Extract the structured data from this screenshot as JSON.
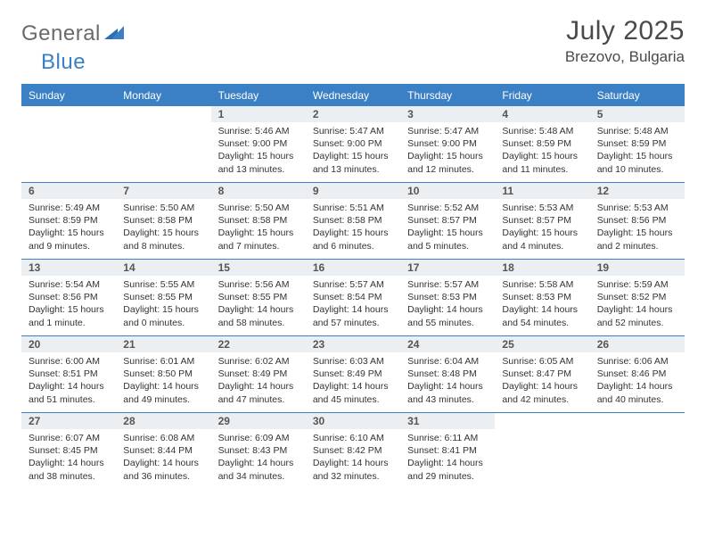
{
  "brand": {
    "word1": "General",
    "word2": "Blue",
    "word1_color": "#6a6a6a",
    "word2_color": "#3b7fc4"
  },
  "title": "July 2025",
  "location": "Brezovo, Bulgaria",
  "accent_color": "#3b7fc4",
  "daynum_bg": "#eceff1",
  "background_color": "#ffffff",
  "fonts": {
    "title_size": 30,
    "location_size": 17,
    "header_size": 12,
    "body_size": 10.5
  },
  "dayNames": [
    "Sunday",
    "Monday",
    "Tuesday",
    "Wednesday",
    "Thursday",
    "Friday",
    "Saturday"
  ],
  "firstDayOffset": 2,
  "days": [
    {
      "n": 1,
      "sunrise": "5:46 AM",
      "sunset": "9:00 PM",
      "daylight": "15 hours and 13 minutes."
    },
    {
      "n": 2,
      "sunrise": "5:47 AM",
      "sunset": "9:00 PM",
      "daylight": "15 hours and 13 minutes."
    },
    {
      "n": 3,
      "sunrise": "5:47 AM",
      "sunset": "9:00 PM",
      "daylight": "15 hours and 12 minutes."
    },
    {
      "n": 4,
      "sunrise": "5:48 AM",
      "sunset": "8:59 PM",
      "daylight": "15 hours and 11 minutes."
    },
    {
      "n": 5,
      "sunrise": "5:48 AM",
      "sunset": "8:59 PM",
      "daylight": "15 hours and 10 minutes."
    },
    {
      "n": 6,
      "sunrise": "5:49 AM",
      "sunset": "8:59 PM",
      "daylight": "15 hours and 9 minutes."
    },
    {
      "n": 7,
      "sunrise": "5:50 AM",
      "sunset": "8:58 PM",
      "daylight": "15 hours and 8 minutes."
    },
    {
      "n": 8,
      "sunrise": "5:50 AM",
      "sunset": "8:58 PM",
      "daylight": "15 hours and 7 minutes."
    },
    {
      "n": 9,
      "sunrise": "5:51 AM",
      "sunset": "8:58 PM",
      "daylight": "15 hours and 6 minutes."
    },
    {
      "n": 10,
      "sunrise": "5:52 AM",
      "sunset": "8:57 PM",
      "daylight": "15 hours and 5 minutes."
    },
    {
      "n": 11,
      "sunrise": "5:53 AM",
      "sunset": "8:57 PM",
      "daylight": "15 hours and 4 minutes."
    },
    {
      "n": 12,
      "sunrise": "5:53 AM",
      "sunset": "8:56 PM",
      "daylight": "15 hours and 2 minutes."
    },
    {
      "n": 13,
      "sunrise": "5:54 AM",
      "sunset": "8:56 PM",
      "daylight": "15 hours and 1 minute."
    },
    {
      "n": 14,
      "sunrise": "5:55 AM",
      "sunset": "8:55 PM",
      "daylight": "15 hours and 0 minutes."
    },
    {
      "n": 15,
      "sunrise": "5:56 AM",
      "sunset": "8:55 PM",
      "daylight": "14 hours and 58 minutes."
    },
    {
      "n": 16,
      "sunrise": "5:57 AM",
      "sunset": "8:54 PM",
      "daylight": "14 hours and 57 minutes."
    },
    {
      "n": 17,
      "sunrise": "5:57 AM",
      "sunset": "8:53 PM",
      "daylight": "14 hours and 55 minutes."
    },
    {
      "n": 18,
      "sunrise": "5:58 AM",
      "sunset": "8:53 PM",
      "daylight": "14 hours and 54 minutes."
    },
    {
      "n": 19,
      "sunrise": "5:59 AM",
      "sunset": "8:52 PM",
      "daylight": "14 hours and 52 minutes."
    },
    {
      "n": 20,
      "sunrise": "6:00 AM",
      "sunset": "8:51 PM",
      "daylight": "14 hours and 51 minutes."
    },
    {
      "n": 21,
      "sunrise": "6:01 AM",
      "sunset": "8:50 PM",
      "daylight": "14 hours and 49 minutes."
    },
    {
      "n": 22,
      "sunrise": "6:02 AM",
      "sunset": "8:49 PM",
      "daylight": "14 hours and 47 minutes."
    },
    {
      "n": 23,
      "sunrise": "6:03 AM",
      "sunset": "8:49 PM",
      "daylight": "14 hours and 45 minutes."
    },
    {
      "n": 24,
      "sunrise": "6:04 AM",
      "sunset": "8:48 PM",
      "daylight": "14 hours and 43 minutes."
    },
    {
      "n": 25,
      "sunrise": "6:05 AM",
      "sunset": "8:47 PM",
      "daylight": "14 hours and 42 minutes."
    },
    {
      "n": 26,
      "sunrise": "6:06 AM",
      "sunset": "8:46 PM",
      "daylight": "14 hours and 40 minutes."
    },
    {
      "n": 27,
      "sunrise": "6:07 AM",
      "sunset": "8:45 PM",
      "daylight": "14 hours and 38 minutes."
    },
    {
      "n": 28,
      "sunrise": "6:08 AM",
      "sunset": "8:44 PM",
      "daylight": "14 hours and 36 minutes."
    },
    {
      "n": 29,
      "sunrise": "6:09 AM",
      "sunset": "8:43 PM",
      "daylight": "14 hours and 34 minutes."
    },
    {
      "n": 30,
      "sunrise": "6:10 AM",
      "sunset": "8:42 PM",
      "daylight": "14 hours and 32 minutes."
    },
    {
      "n": 31,
      "sunrise": "6:11 AM",
      "sunset": "8:41 PM",
      "daylight": "14 hours and 29 minutes."
    }
  ],
  "labels": {
    "sunrise": "Sunrise:",
    "sunset": "Sunset:",
    "daylight": "Daylight:"
  }
}
